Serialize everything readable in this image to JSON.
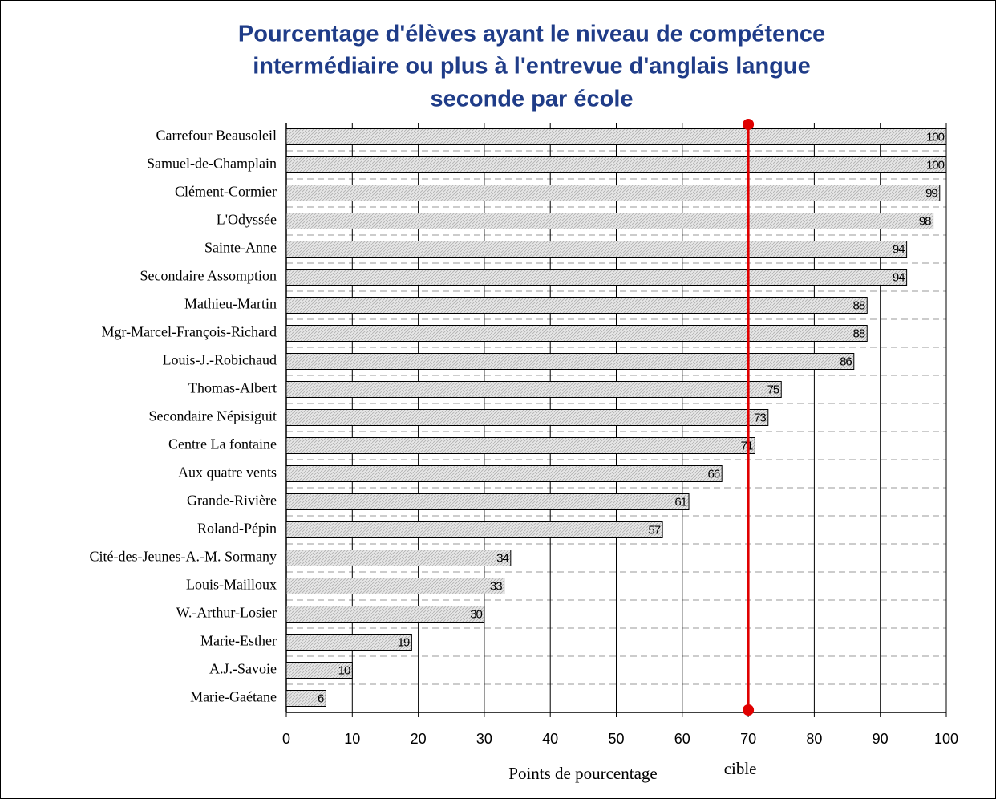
{
  "chart_data": {
    "type": "barh",
    "title": [
      "Pourcentage d'élèves ayant le niveau de compétence",
      "intermédiaire ou plus à l'entrevue d'anglais langue",
      "seconde par école"
    ],
    "xlabel": "Points de pourcentage",
    "categories": [
      "Carrefour Beausoleil",
      "Samuel-de-Champlain",
      "Clément-Cormier",
      "L'Odyssée",
      "Sainte-Anne",
      "Secondaire Assomption",
      "Mathieu-Martin",
      "Mgr-Marcel-François-Richard",
      "Louis-J.-Robichaud",
      "Thomas-Albert",
      "Secondaire Népisiguit",
      "Centre La fontaine",
      "Aux quatre vents",
      "Grande-Rivière",
      "Roland-Pépin",
      "Cité-des-Jeunes-A.-M. Sormany",
      "Louis-Mailloux",
      "W.-Arthur-Losier",
      "Marie-Esther",
      "A.J.-Savoie",
      "Marie-Gaétane"
    ],
    "values": [
      100,
      100,
      99,
      98,
      94,
      94,
      88,
      88,
      86,
      75,
      73,
      71,
      66,
      61,
      57,
      34,
      33,
      30,
      19,
      10,
      6
    ],
    "color": "#d9d9d9",
    "xlim": [
      0,
      100
    ],
    "xticks": [
      0,
      10,
      20,
      30,
      40,
      50,
      60,
      70,
      80,
      90,
      100
    ],
    "grid": true,
    "target": {
      "value": 70,
      "label": "cible",
      "color": "#e00000"
    }
  }
}
